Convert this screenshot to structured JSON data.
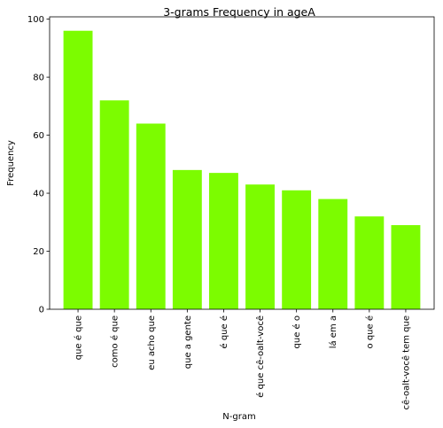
{
  "chart_data": {
    "type": "bar",
    "title": "3-grams Frequency in ageA",
    "xlabel": "N-gram",
    "ylabel": "Frequency",
    "categories": [
      "que é que",
      "como é que",
      "eu acho que",
      "que a gente",
      "é que é",
      "é que cê-oalt-você",
      "que é o",
      "lá em a",
      "o que é",
      "cê-oalt-você tem que"
    ],
    "values": [
      96,
      72,
      64,
      48,
      47,
      43,
      41,
      38,
      32,
      29
    ],
    "ylim": [
      0,
      100.8
    ],
    "yticks": [
      0,
      20,
      40,
      60,
      80,
      100
    ],
    "bar_color": "#7cfc00",
    "grid": false,
    "legend": "none"
  }
}
